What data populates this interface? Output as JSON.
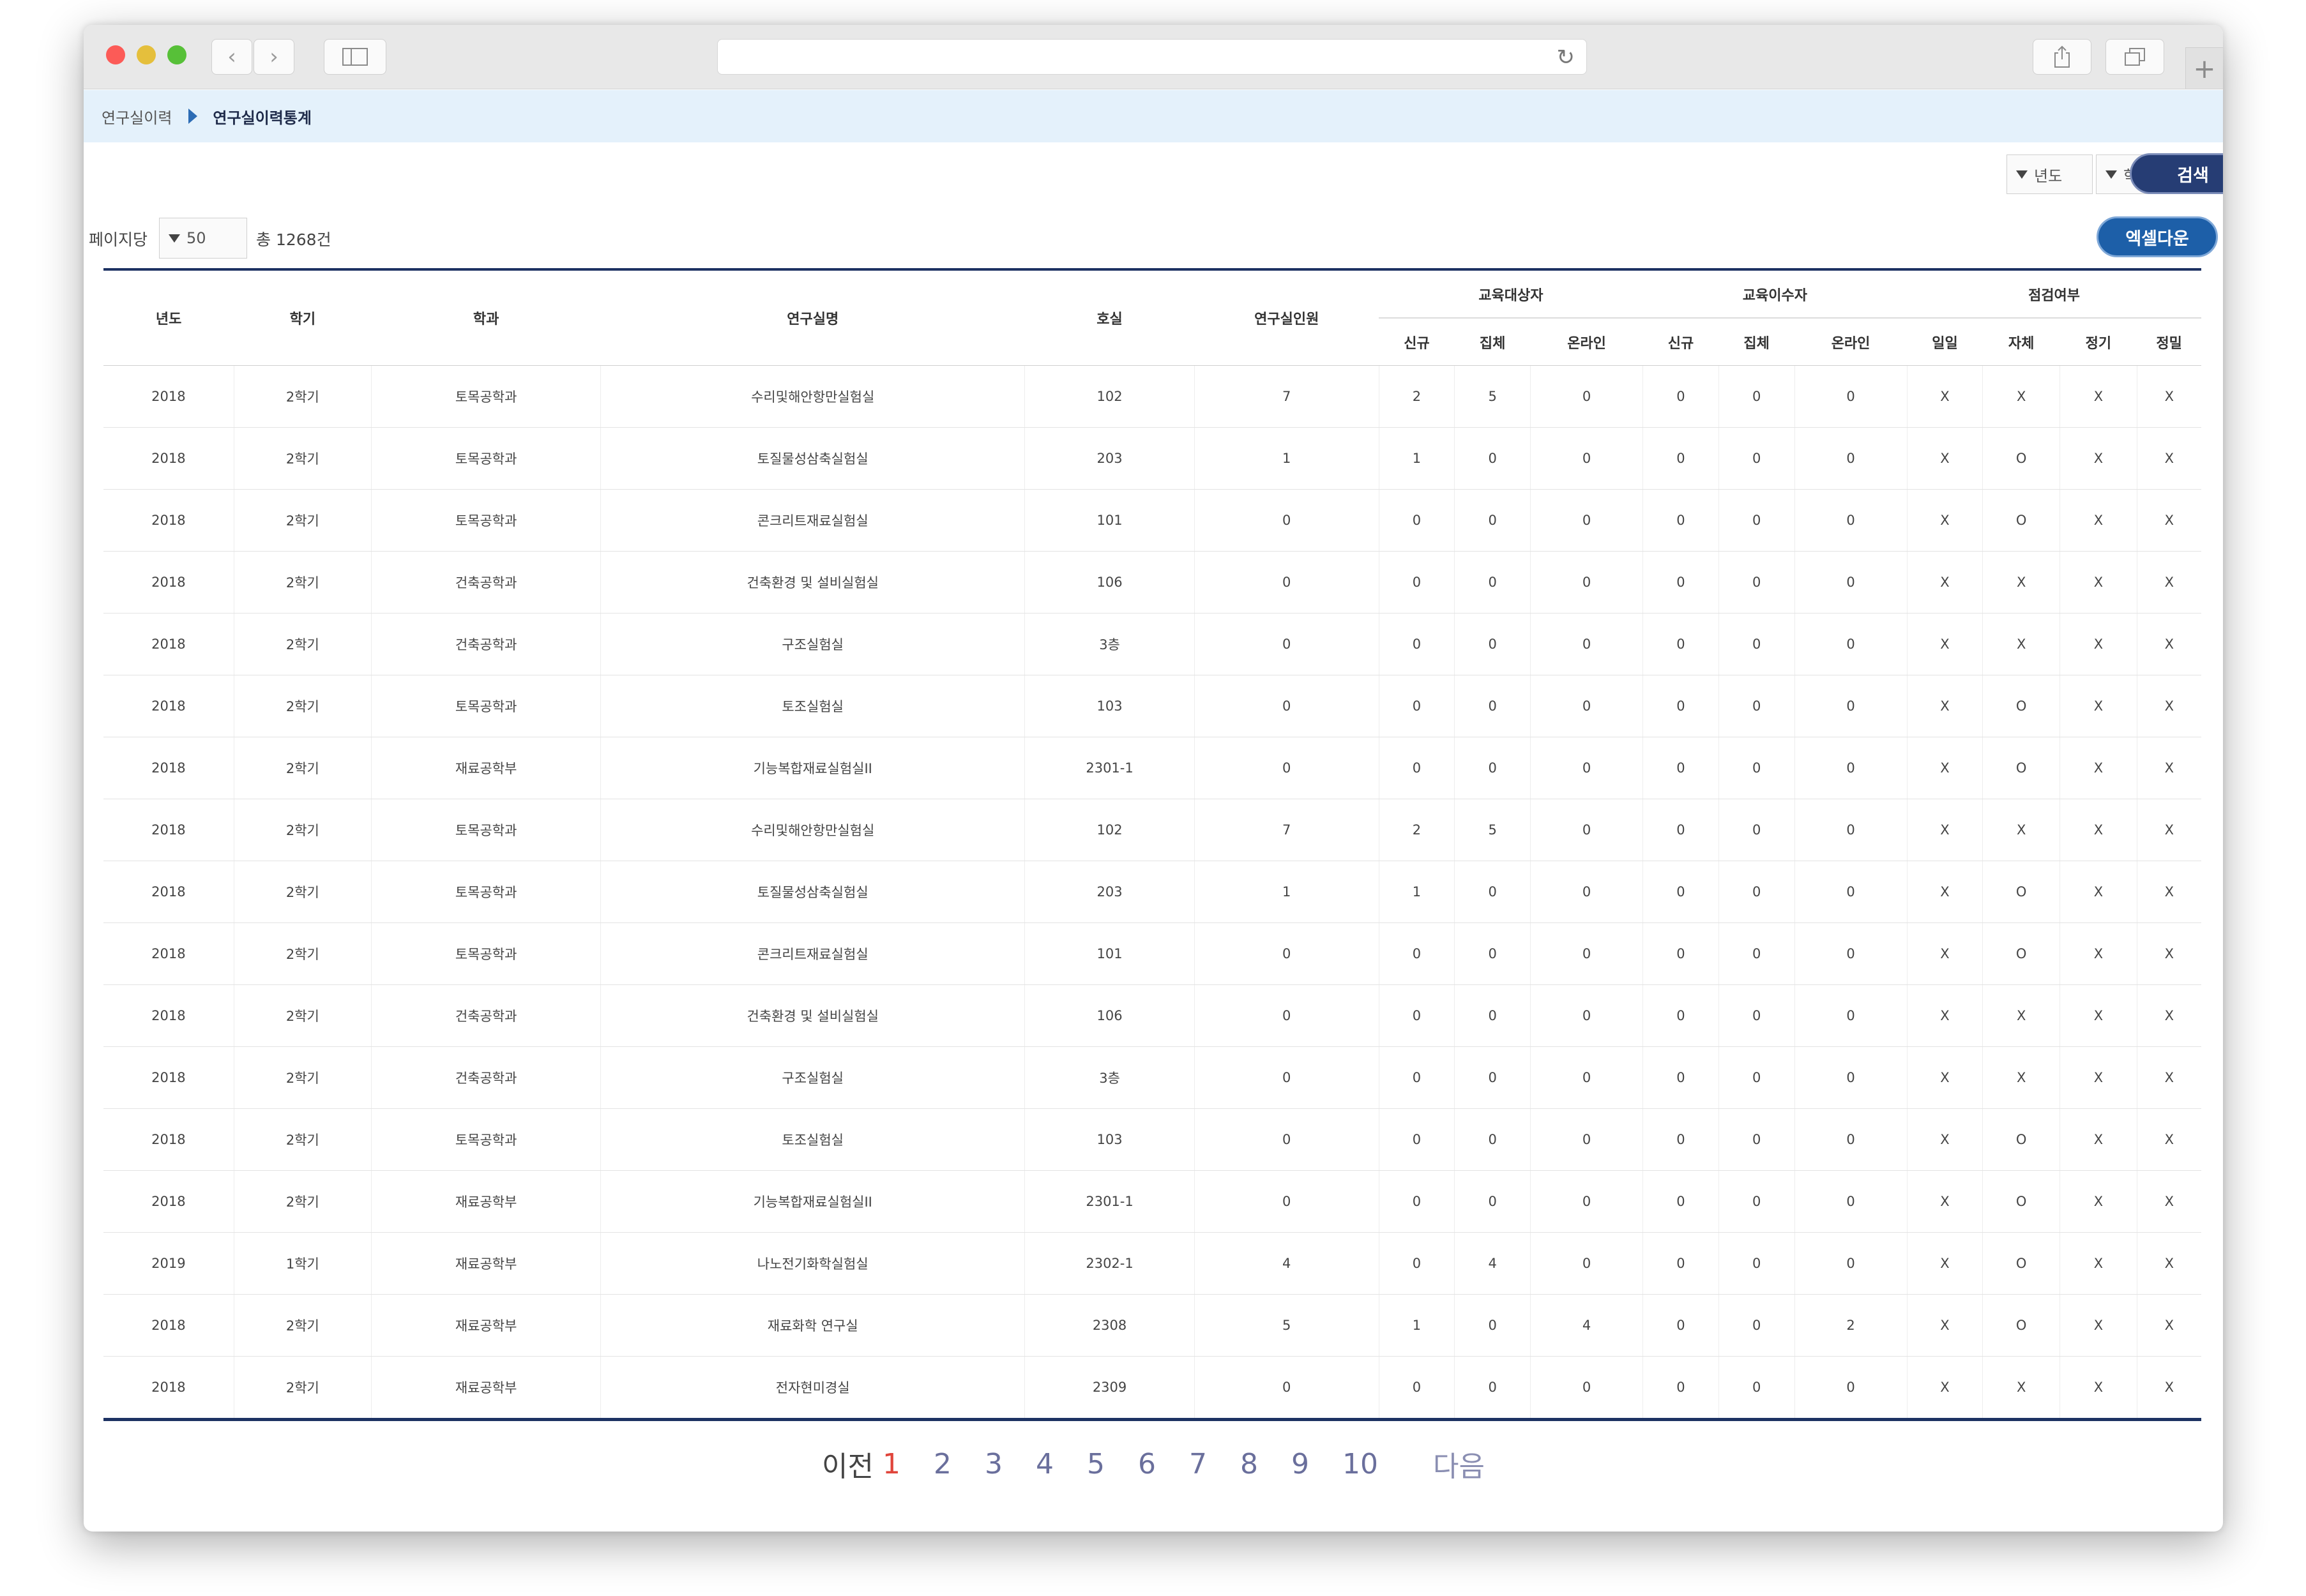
{
  "breadcrumb": {
    "home": "연구실이력",
    "current": "연구실이력통계"
  },
  "filters": {
    "year_label": "년도",
    "semester_label": "학기",
    "search_label": "검색"
  },
  "toolbar": {
    "perpage_label": "페이지당",
    "perpage_value": "50",
    "total_text": "총 1268건",
    "excel_label": "엑셀다운"
  },
  "table": {
    "headers": {
      "year": "년도",
      "semester": "학기",
      "dept": "학과",
      "lab": "연구실명",
      "room": "호실",
      "members": "연구실인원",
      "edu_target": "교육대상자",
      "edu_done": "교육이수자",
      "inspection": "점검여부",
      "new": "신규",
      "group": "집체",
      "online": "온라인",
      "daily": "일일",
      "self": "자체",
      "regular": "정기",
      "detailed": "정밀"
    },
    "rows": [
      [
        "2018",
        "2학기",
        "토목공학과",
        "수리및해안항만실험실",
        "102",
        "7",
        "2",
        "5",
        "0",
        "0",
        "0",
        "0",
        "X",
        "X",
        "X",
        "X"
      ],
      [
        "2018",
        "2학기",
        "토목공학과",
        "토질물성삼축실험실",
        "203",
        "1",
        "1",
        "0",
        "0",
        "0",
        "0",
        "0",
        "X",
        "O",
        "X",
        "X"
      ],
      [
        "2018",
        "2학기",
        "토목공학과",
        "콘크리트재료실험실",
        "101",
        "0",
        "0",
        "0",
        "0",
        "0",
        "0",
        "0",
        "X",
        "O",
        "X",
        "X"
      ],
      [
        "2018",
        "2학기",
        "건축공학과",
        "건축환경 및 설비실험실",
        "106",
        "0",
        "0",
        "0",
        "0",
        "0",
        "0",
        "0",
        "X",
        "X",
        "X",
        "X"
      ],
      [
        "2018",
        "2학기",
        "건축공학과",
        "구조실험실",
        "3층",
        "0",
        "0",
        "0",
        "0",
        "0",
        "0",
        "0",
        "X",
        "X",
        "X",
        "X"
      ],
      [
        "2018",
        "2학기",
        "토목공학과",
        "토조실험실",
        "103",
        "0",
        "0",
        "0",
        "0",
        "0",
        "0",
        "0",
        "X",
        "O",
        "X",
        "X"
      ],
      [
        "2018",
        "2학기",
        "재료공학부",
        "기능복합재료실험실II",
        "2301-1",
        "0",
        "0",
        "0",
        "0",
        "0",
        "0",
        "0",
        "X",
        "O",
        "X",
        "X"
      ],
      [
        "2018",
        "2학기",
        "토목공학과",
        "수리및해안항만실험실",
        "102",
        "7",
        "2",
        "5",
        "0",
        "0",
        "0",
        "0",
        "X",
        "X",
        "X",
        "X"
      ],
      [
        "2018",
        "2학기",
        "토목공학과",
        "토질물성삼축실험실",
        "203",
        "1",
        "1",
        "0",
        "0",
        "0",
        "0",
        "0",
        "X",
        "O",
        "X",
        "X"
      ],
      [
        "2018",
        "2학기",
        "토목공학과",
        "콘크리트재료실험실",
        "101",
        "0",
        "0",
        "0",
        "0",
        "0",
        "0",
        "0",
        "X",
        "O",
        "X",
        "X"
      ],
      [
        "2018",
        "2학기",
        "건축공학과",
        "건축환경 및 설비실험실",
        "106",
        "0",
        "0",
        "0",
        "0",
        "0",
        "0",
        "0",
        "X",
        "X",
        "X",
        "X"
      ],
      [
        "2018",
        "2학기",
        "건축공학과",
        "구조실험실",
        "3층",
        "0",
        "0",
        "0",
        "0",
        "0",
        "0",
        "0",
        "X",
        "X",
        "X",
        "X"
      ],
      [
        "2018",
        "2학기",
        "토목공학과",
        "토조실험실",
        "103",
        "0",
        "0",
        "0",
        "0",
        "0",
        "0",
        "0",
        "X",
        "O",
        "X",
        "X"
      ],
      [
        "2018",
        "2학기",
        "재료공학부",
        "기능복합재료실험실II",
        "2301-1",
        "0",
        "0",
        "0",
        "0",
        "0",
        "0",
        "0",
        "X",
        "O",
        "X",
        "X"
      ],
      [
        "2019",
        "1학기",
        "재료공학부",
        "나노전기화학실험실",
        "2302-1",
        "4",
        "0",
        "4",
        "0",
        "0",
        "0",
        "0",
        "X",
        "O",
        "X",
        "X"
      ],
      [
        "2018",
        "2학기",
        "재료공학부",
        "재료화학 연구실",
        "2308",
        "5",
        "1",
        "0",
        "4",
        "0",
        "0",
        "2",
        "X",
        "O",
        "X",
        "X"
      ],
      [
        "2018",
        "2학기",
        "재료공학부",
        "전자현미경실",
        "2309",
        "0",
        "0",
        "0",
        "0",
        "0",
        "0",
        "0",
        "X",
        "X",
        "X",
        "X"
      ]
    ]
  },
  "pagination": {
    "prev": "이전",
    "pages": [
      "1",
      "2",
      "3",
      "4",
      "5",
      "6",
      "7",
      "8",
      "9",
      "10"
    ],
    "current": "1",
    "next": "다음"
  },
  "colors": {
    "accent_navy": "#1d3263",
    "search_button": "#263d74",
    "excel_button": "#1d5fa8",
    "active_page": "#e0453b",
    "breadcrumb_bg": "#e4f1fb"
  },
  "icons": {
    "back": "chevron-left-icon",
    "forward": "chevron-right-icon",
    "sidebar": "sidebar-icon",
    "reload": "reload-icon",
    "share": "share-icon",
    "tabs": "tabs-icon",
    "new_tab": "plus-icon"
  }
}
